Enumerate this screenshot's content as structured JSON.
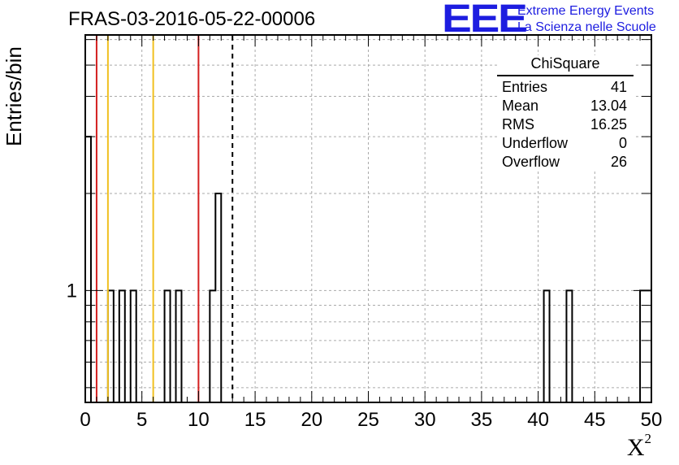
{
  "header": {
    "title": "FRAS-03-2016-05-22-00006"
  },
  "logo": {
    "mark": "EEE",
    "line1": "Extreme Energy Events",
    "line2": "La Scienza nelle Scuole",
    "color": "#1d1de0"
  },
  "stats_box": {
    "title": "ChiSquare",
    "rows": [
      {
        "label": "Entries",
        "value": "41"
      },
      {
        "label": "Mean",
        "value": "13.04"
      },
      {
        "label": "RMS",
        "value": "16.25"
      },
      {
        "label": "Underflow",
        "value": "0"
      },
      {
        "label": "Overflow",
        "value": "26"
      }
    ]
  },
  "chart_data": {
    "type": "bar",
    "histogram": true,
    "bin_width": 0.5,
    "xlim": [
      0,
      50
    ],
    "ylim": [
      0.45,
      6.2
    ],
    "log_y": true,
    "grid": true,
    "xlabel": "X",
    "xlabel_superscript": "2",
    "ylabel": "Entries/bin",
    "x_ticks": [
      "0",
      "5",
      "10",
      "15",
      "20",
      "25",
      "30",
      "35",
      "40",
      "45",
      "50"
    ],
    "y_tick_labels": [
      "1"
    ],
    "bins": [
      {
        "x": 0.0,
        "count": 3
      },
      {
        "x": 2.0,
        "count": 1
      },
      {
        "x": 3.0,
        "count": 1
      },
      {
        "x": 4.0,
        "count": 1
      },
      {
        "x": 7.0,
        "count": 1
      },
      {
        "x": 8.0,
        "count": 1
      },
      {
        "x": 11.0,
        "count": 1
      },
      {
        "x": 11.5,
        "count": 2
      },
      {
        "x": 40.5,
        "count": 1
      },
      {
        "x": 42.5,
        "count": 1
      },
      {
        "x": 49.0,
        "count": 1
      },
      {
        "x": 49.5,
        "count": 1
      }
    ],
    "reference_lines": [
      {
        "x": 1,
        "color": "#d42020",
        "style": "solid"
      },
      {
        "x": 2,
        "color": "#f0c020",
        "style": "solid"
      },
      {
        "x": 6,
        "color": "#f0c020",
        "style": "solid"
      },
      {
        "x": 10,
        "color": "#d42020",
        "style": "solid"
      },
      {
        "x": 13,
        "color": "#000000",
        "style": "dashed"
      }
    ]
  }
}
